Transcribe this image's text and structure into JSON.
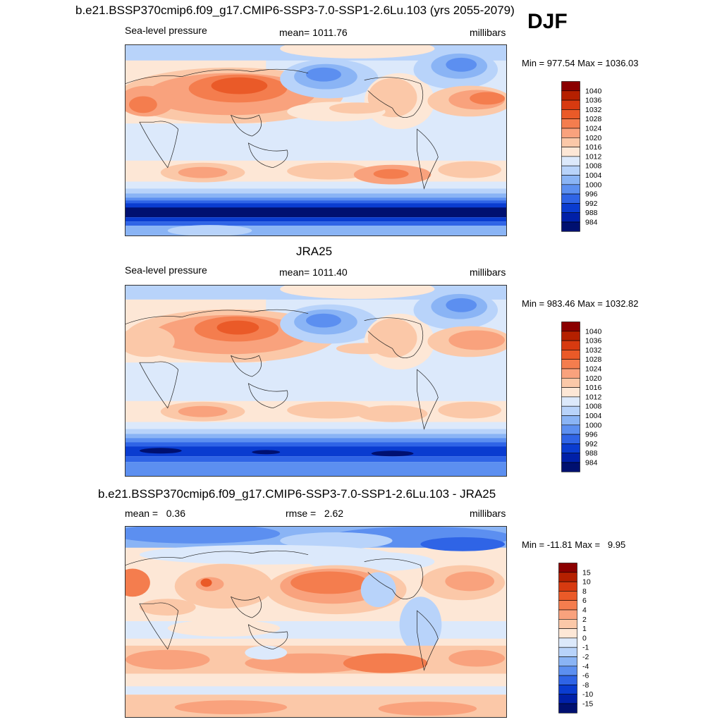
{
  "season": "DJF",
  "panels": [
    {
      "title": "b.e21.BSSP370cmip6.f09_g17.CMIP6-SSP3-7.0-SSP1-2.6Lu.103 (yrs 2055-2079)",
      "left_label": "Sea-level pressure",
      "center_label": "mean= 1011.76",
      "right_label": "millibars",
      "minmax": "Min = 977.54 Max = 1036.03",
      "colorbar_levels": [
        "1040",
        "1036",
        "1032",
        "1028",
        "1024",
        "1020",
        "1016",
        "1012",
        "1008",
        "1004",
        "1000",
        "996",
        "992",
        "988",
        "984"
      ]
    },
    {
      "title": "JRA25",
      "left_label": "Sea-level pressure",
      "center_label": "mean= 1011.40",
      "right_label": "millibars",
      "minmax": "Min = 983.46 Max = 1032.82",
      "colorbar_levels": [
        "1040",
        "1036",
        "1032",
        "1028",
        "1024",
        "1020",
        "1016",
        "1012",
        "1008",
        "1004",
        "1000",
        "996",
        "992",
        "988",
        "984"
      ]
    },
    {
      "title": "b.e21.BSSP370cmip6.f09_g17.CMIP6-SSP3-7.0-SSP1-2.6Lu.103 - JRA25",
      "left_label": "mean =   0.36",
      "center_label": "rmse =   2.62",
      "right_label": "millibars",
      "minmax": "Min = -11.81 Max =   9.95",
      "colorbar_levels": [
        "15",
        "10",
        "8",
        "6",
        "4",
        "2",
        "1",
        "0",
        "-1",
        "-2",
        "-4",
        "-6",
        "-8",
        "-10",
        "-15"
      ]
    }
  ],
  "colors": {
    "scale": [
      "#8b0000",
      "#b52000",
      "#d73a10",
      "#ea5a28",
      "#f47d4e",
      "#f9a27d",
      "#fbc8a8",
      "#fde7d6",
      "#dce9fb",
      "#b8d3fa",
      "#8ab4f5",
      "#5c8ff0",
      "#2f64e6",
      "#0a3cd0",
      "#0020a8",
      "#001070"
    ]
  }
}
